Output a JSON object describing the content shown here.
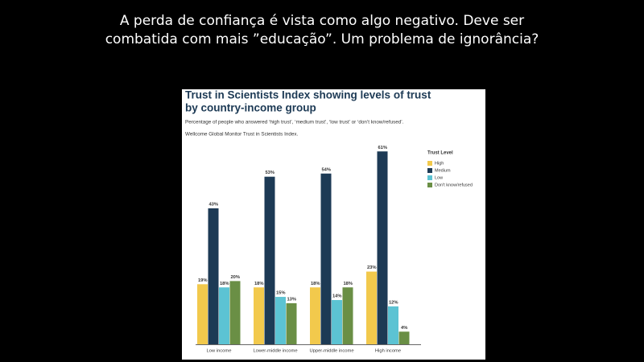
{
  "slide": {
    "title_lines": [
      "A perda de confiança é vista como algo negativo. Deve ser",
      "combatida com mais ”educação”. Um problema de ignorância?"
    ]
  },
  "chart_data": {
    "type": "bar",
    "title": [
      "Trust in Scientists Index showing levels of trust",
      "by country-income  group"
    ],
    "subtitle": "Percentage of people who answered ‘high trust’, ‘medium trust’, ‘low trust’ or ‘don’t know/refused’.",
    "source": "Wellcome Global Monitor Trust in Scientists Index.",
    "legend_title": "Trust Level",
    "categories": [
      "Low income",
      "Lower-middle income",
      "Upper-middle income",
      "High income"
    ],
    "series": [
      {
        "name": "High",
        "color": "#f2c94c",
        "values": [
          19,
          18,
          18,
          23
        ],
        "value_labels": [
          "19%",
          "18%",
          "18%",
          "23%"
        ]
      },
      {
        "name": "Medium",
        "color": "#1d3a55",
        "values": [
          43,
          53,
          54,
          61
        ],
        "value_labels": [
          "43%",
          "53%",
          "54%",
          "61%"
        ]
      },
      {
        "name": "Low",
        "color": "#5cc3d3",
        "values": [
          18,
          15,
          14,
          12
        ],
        "value_labels": [
          "18%",
          "15%",
          "14%",
          "12%"
        ]
      },
      {
        "name": "Don't know/refused",
        "color": "#6a8f45",
        "values": [
          20,
          13,
          18,
          4
        ],
        "value_labels": [
          "20%",
          "13%",
          "18%",
          "4%"
        ]
      }
    ],
    "ylim": [
      0,
      65
    ]
  }
}
